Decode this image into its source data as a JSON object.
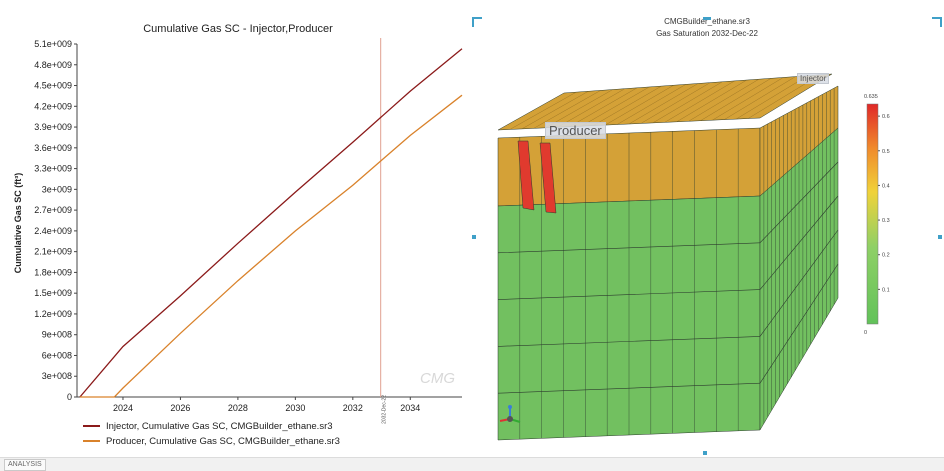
{
  "chart_data": {
    "type": "line",
    "title": "Cumulative Gas SC - Injector,Producer",
    "ylabel": "Cumulative Gas SC (ft³)",
    "xlabel": "",
    "xlim": [
      2022.4,
      2035.8
    ],
    "ylim": [
      0,
      5100000000
    ],
    "yticks": [
      0,
      300000000,
      600000000,
      900000000,
      1200000000,
      1500000000,
      1800000000,
      2100000000,
      2400000000,
      2700000000,
      3000000000,
      3300000000,
      3600000000,
      3900000000,
      4200000000,
      4500000000,
      4800000000,
      5100000000
    ],
    "ytick_labels": [
      "0",
      "3e+008",
      "6e+008",
      "9e+008",
      "1.2e+009",
      "1.5e+009",
      "1.8e+009",
      "2.1e+009",
      "2.4e+009",
      "2.7e+009",
      "3e+009",
      "3.3e+009",
      "3.6e+009",
      "3.9e+009",
      "4.2e+009",
      "4.5e+009",
      "4.8e+009",
      "5.1e+009"
    ],
    "xticks": [
      2024,
      2026,
      2028,
      2030,
      2032,
      2034
    ],
    "xtick_labels": [
      "2024",
      "2026",
      "2028",
      "2030",
      "2032",
      "2034"
    ],
    "vline": {
      "x": 2032.97,
      "label": "2032-Dec-22",
      "color": "#e0a090"
    },
    "watermark": "CMG",
    "grid": false,
    "legend_position": "bottom",
    "series": [
      {
        "name": "Injector, Cumulative Gas SC, CMGBuilder_ethane.sr3",
        "color": "#8b1a1a",
        "x": [
          2022.5,
          2024,
          2026,
          2028,
          2030,
          2032,
          2034,
          2035.8
        ],
        "y": [
          0,
          730000000,
          1460000000,
          2220000000,
          2960000000,
          3680000000,
          4420000000,
          5030000000
        ]
      },
      {
        "name": "Producer, Cumulative Gas SC, CMGBuilder_ethane.sr3",
        "color": "#d9822b",
        "x": [
          2022.5,
          2023.7,
          2024,
          2026,
          2028,
          2030,
          2032,
          2034,
          2035.8
        ],
        "y": [
          0,
          0,
          130000000,
          920000000,
          1680000000,
          2400000000,
          3060000000,
          3780000000,
          4360000000
        ]
      }
    ]
  },
  "view3d": {
    "title": "CMGBuilder_ethane.sr3",
    "subtitle": "Gas Saturation  2032-Dec-22",
    "producer_label": "Producer",
    "injector_label": "Injector",
    "colorbar_max_label": "0.635",
    "colorbar_min_label": "0",
    "colorbar_ticks": [
      "0.6",
      "0.5",
      "0.4",
      "0.3",
      "0.2",
      "0.1"
    ],
    "colorbar_tick_values": [
      0.6,
      0.5,
      0.4,
      0.3,
      0.2,
      0.1
    ],
    "colorbar_range": [
      0,
      0.635
    ],
    "colors": {
      "gas_layer": "#d4a137",
      "water_zone": "#72c060",
      "producer_cells": "#e03a2e",
      "grid_line": "#2c3b2e"
    }
  },
  "status_bar": {
    "tab_label": "ANALYSIS"
  }
}
